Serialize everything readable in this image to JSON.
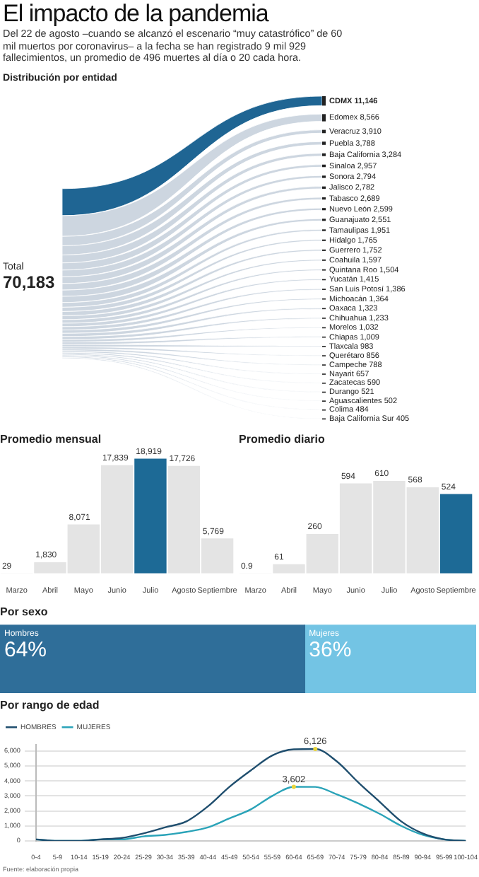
{
  "chart_data": [
    {
      "type": "other",
      "title": "El impacto de la pandemia",
      "subtitle": "Del 22 de agosto –cuando se alcanzó el escenario “muy catastrófico” de 60 mil muertos por coronavirus– a la fecha se han registrado 9 mil 929 fallecimientos, un promedio de 496 muertes al día o 20 cada hora.",
      "annotations": [
        "Distribución por entidad",
        "Total",
        "70,183"
      ],
      "categories": [
        "CDMX",
        "Edomex",
        "Veracruz",
        "Puebla",
        "Baja California",
        "Sinaloa",
        "Sonora",
        "Jalisco",
        "Tabasco",
        "Nuevo León",
        "Guanajuato",
        "Tamaulipas",
        "Hidalgo",
        "Guerrero",
        "Coahuila",
        "Quintana Roo",
        "Yucatán",
        "San Luis Potosí",
        "Michoacán",
        "Oaxaca",
        "Chihuahua",
        "Morelos",
        "Chiapas",
        "Tlaxcala",
        "Querétaro",
        "Campeche",
        "Nayarit",
        "Zacatecas",
        "Durango",
        "Aguascalientes",
        "Colima",
        "Baja California Sur"
      ],
      "values": [
        11146,
        8566,
        3910,
        3788,
        3284,
        2957,
        2794,
        2782,
        2689,
        2599,
        2551,
        1951,
        1765,
        1752,
        1597,
        1504,
        1415,
        1386,
        1364,
        1323,
        1233,
        1032,
        1009,
        983,
        856,
        788,
        657,
        590,
        521,
        502,
        484,
        405
      ],
      "value_labels": [
        "11,146",
        "8,566",
        "3,910",
        "3,788",
        "3,284",
        "2,957",
        "2,794",
        "2,782",
        "2,689",
        "2,599",
        "2,551",
        "1,951",
        "1,765",
        "1,752",
        "1,597",
        "1,504",
        "1,415",
        "1,386",
        "1,364",
        "1,323",
        "1,233",
        "1,032",
        "1,009",
        "983",
        "856",
        "788",
        "657",
        "590",
        "521",
        "502",
        "484",
        "405"
      ],
      "colors": [
        "#1f6593",
        "#cdd6e0",
        "#cdd6e0",
        "#cdd6e0",
        "#cdd6e0",
        "#cdd6e0",
        "#cdd6e0",
        "#cdd6e0",
        "#cdd6e0",
        "#cdd6e0",
        "#cdd6e0",
        "#cdd6e0",
        "#cdd6e0",
        "#cdd6e0",
        "#cdd6e0",
        "#cdd6e0",
        "#cdd6e0",
        "#cdd6e0",
        "#cdd6e0",
        "#cdd6e0",
        "#cdd6e0",
        "#cdd6e0",
        "#cdd6e0",
        "#cdd6e0",
        "#cdd6e0",
        "#cdd6e0",
        "#cdd6e0",
        "#cdd6e0",
        "#cdd6e0",
        "#cdd6e0",
        "#cdd6e0",
        "#cdd6e0"
      ]
    },
    {
      "type": "bar",
      "title": "Promedio mensual",
      "categories": [
        "Marzo",
        "Abril",
        "Mayo",
        "Junio",
        "Julio",
        "Agosto",
        "Septiembre"
      ],
      "values": [
        29,
        1830,
        8071,
        17839,
        18919,
        17726,
        5769
      ],
      "value_labels": [
        "29",
        "1,830",
        "8,071",
        "17,839",
        "18,919",
        "17,726",
        "5,769"
      ],
      "colors": [
        "#e4e4e4",
        "#e4e4e4",
        "#e4e4e4",
        "#e4e4e4",
        "#1d6a96",
        "#e4e4e4",
        "#e4e4e4"
      ],
      "tick_labels": "x"
    },
    {
      "type": "bar",
      "title": "Promedio diario",
      "categories": [
        "Marzo",
        "Abril",
        "Mayo",
        "Junio",
        "Julio",
        "Agosto",
        "Septiembre"
      ],
      "values": [
        0.9,
        61,
        260,
        594,
        610,
        568,
        524
      ],
      "colors": [
        "#e4e4e4",
        "#e4e4e4",
        "#e4e4e4",
        "#e4e4e4",
        "#e4e4e4",
        "#e4e4e4",
        "#1d6a96"
      ],
      "data_labels": true,
      "tick_labels": "x"
    },
    {
      "type": "bar",
      "title": "Por sexo",
      "orientation": "horizontal",
      "stacked": true,
      "tick_labels": false,
      "categories": [
        null
      ],
      "series": [
        {
          "name": "Hombres",
          "color": "#2f6e99",
          "values": [
            64
          ],
          "value_labels": [
            "64%"
          ]
        },
        {
          "name": "Mujeres",
          "color": "#73c4e4",
          "values": [
            36
          ],
          "value_labels": [
            "36%"
          ]
        }
      ]
    },
    {
      "type": "line",
      "title": "Por rango de edad",
      "legend": "top left",
      "grid": "y",
      "ylim": [
        0,
        6400
      ],
      "yticks": [
        0,
        {
          "value": 1000,
          "label": "1,000"
        },
        {
          "value": 2000,
          "label": "2,000"
        },
        {
          "value": 3000,
          "label": "3,000"
        },
        {
          "value": 4000,
          "label": "4,000"
        },
        {
          "value": 5000,
          "label": "5,000"
        },
        {
          "value": 6000,
          "label": "6,000"
        }
      ],
      "categories": [
        "0-4",
        "5-9",
        "10-14",
        "15-19",
        "20-24",
        "25-29",
        "30-34",
        "35-39",
        "40-44",
        "45-49",
        "50-54",
        "55-59",
        "60-64",
        "65-69",
        "70-74",
        "75-79",
        "80-84",
        "85-89",
        "90-94",
        "95-99",
        "100-104"
      ],
      "series": [
        {
          "name": "HOMBRES",
          "color": "#1f4e6e",
          "values": [
            100,
            0,
            0,
            100,
            200,
            500,
            900,
            1300,
            2300,
            3600,
            4700,
            5700,
            6100,
            6126,
            5300,
            3900,
            2600,
            1300,
            500,
            100,
            0
          ]
        },
        {
          "name": "MUJERES",
          "color": "#2aa3b8",
          "values": [
            100,
            0,
            0,
            100,
            100,
            300,
            400,
            600,
            900,
            1500,
            2100,
            3000,
            3602,
            3600,
            3100,
            2500,
            1800,
            1000,
            400,
            100,
            0
          ]
        }
      ],
      "annotations": [
        {
          "text": "6,126",
          "x": "65-69",
          "y": 6126
        },
        {
          "text": "3,602",
          "x": "60-64",
          "y": 3602
        },
        "Fuente: elaboración propia"
      ]
    }
  ]
}
